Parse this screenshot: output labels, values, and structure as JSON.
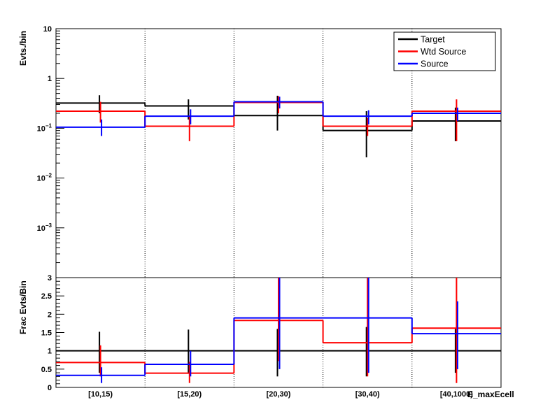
{
  "chart_data": {
    "type": "histogram",
    "categories": [
      "[10,15)",
      "[15,20)",
      "[20,30)",
      "[30,40)",
      "[40,1000)"
    ],
    "xlabel": "E_maxEcell",
    "legend": {
      "position": "top-right",
      "entries": [
        {
          "name": "Target",
          "color": "#000000"
        },
        {
          "name": "Wtd Source",
          "color": "#ff0000"
        },
        {
          "name": "Source",
          "color": "#0000ff"
        }
      ]
    },
    "panels": [
      {
        "id": "top",
        "ylabel": "Evts./bin",
        "yscale": "log",
        "ylim": [
          0.0001,
          10
        ],
        "yticks": [
          {
            "value": 10,
            "mant": "10",
            "exp": ""
          },
          {
            "value": 1,
            "mant": "1",
            "exp": ""
          },
          {
            "value": 0.1,
            "mant": "10",
            "exp": "−1"
          },
          {
            "value": 0.01,
            "mant": "10",
            "exp": "−2"
          },
          {
            "value": 0.001,
            "mant": "10",
            "exp": "−3"
          }
        ],
        "series": [
          {
            "name": "Target",
            "color": "#000000",
            "values": [
              0.32,
              0.28,
              0.18,
              0.09,
              0.14
            ],
            "err_low": [
              0.2,
              0.15,
              0.09,
              0.026,
              0.055
            ],
            "err_high": [
              0.46,
              0.38,
              0.45,
              0.22,
              0.26
            ]
          },
          {
            "name": "Wtd Source",
            "color": "#ff0000",
            "values": [
              0.22,
              0.11,
              0.33,
              0.11,
              0.22
            ],
            "err_low": [
              0.13,
              0.055,
              0.2,
              0.07,
              0.055
            ],
            "err_high": [
              0.34,
              0.18,
              0.44,
              0.16,
              0.38
            ]
          },
          {
            "name": "Source",
            "color": "#0000ff",
            "values": [
              0.105,
              0.175,
              0.34,
              0.175,
              0.2
            ],
            "err_low": [
              0.07,
              0.12,
              0.25,
              0.12,
              0.14
            ],
            "err_high": [
              0.15,
              0.24,
              0.43,
              0.23,
              0.26
            ]
          }
        ]
      },
      {
        "id": "bottom",
        "ylabel": "Frac Evts/Bin",
        "yscale": "linear",
        "ylim": [
          0,
          3
        ],
        "yticks": [
          0,
          0.5,
          1,
          1.5,
          2,
          2.5,
          3
        ],
        "series": [
          {
            "name": "Target",
            "color": "#000000",
            "values": [
              1,
              1,
              1,
              1,
              1
            ],
            "err_low": [
              0.4,
              0.4,
              0.3,
              0.3,
              0.4
            ],
            "err_high": [
              1.52,
              1.58,
              1.6,
              1.65,
              1.6
            ]
          },
          {
            "name": "Wtd Source",
            "color": "#ff0000",
            "values": [
              0.68,
              0.39,
              1.83,
              1.22,
              1.62
            ],
            "err_low": [
              0.3,
              0.12,
              0.72,
              0.3,
              0.12
            ],
            "err_high": [
              1.15,
              0.7,
              3.0,
              3.0,
              3.0
            ]
          },
          {
            "name": "Source",
            "color": "#0000ff",
            "values": [
              0.33,
              0.63,
              1.9,
              1.9,
              1.47
            ],
            "err_low": [
              0.12,
              0.3,
              0.5,
              0.4,
              0.5
            ],
            "err_high": [
              0.55,
              1.0,
              3.0,
              3.0,
              2.35
            ]
          }
        ]
      }
    ]
  }
}
